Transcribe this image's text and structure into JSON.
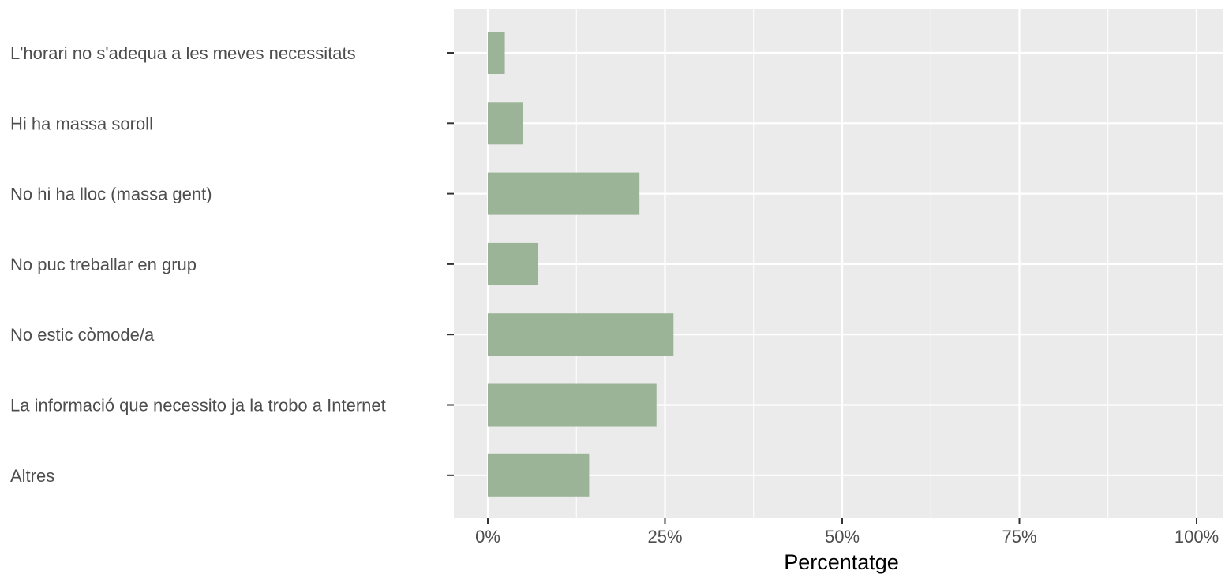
{
  "chart_data": {
    "type": "bar",
    "orientation": "horizontal",
    "categories": [
      "L'horari no s'adequa a les meves necessitats",
      "Hi ha massa soroll",
      "No hi ha lloc (massa gent)",
      "No puc treballar en grup",
      "No estic còmode/a",
      "La informació que necessito ja la trobo a Internet",
      "Altres"
    ],
    "values": [
      2.4,
      4.9,
      21.4,
      7.1,
      26.2,
      23.8,
      14.3
    ],
    "xlabel": "Percentatge",
    "ylabel": "",
    "xlim": [
      0,
      100
    ],
    "x_ticks": [
      0,
      25,
      50,
      75,
      100
    ],
    "x_tick_labels": [
      "0%",
      "25%",
      "50%",
      "75%",
      "100%"
    ],
    "grid": true,
    "colors": {
      "bar": "#9bb397",
      "panel": "#ebebeb",
      "grid": "#ffffff"
    }
  }
}
